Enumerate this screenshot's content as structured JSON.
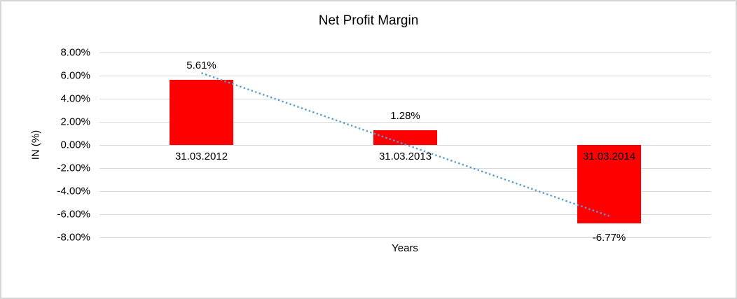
{
  "frame": {
    "background_color": "#ffffff",
    "border_color": "#d6d6d6"
  },
  "chart_data": {
    "type": "bar",
    "title": "Net Profit Margin",
    "xlabel": "Years",
    "ylabel": "IN (%)",
    "categories": [
      "31.03.2012",
      "31.03.2013",
      "31.03.2014"
    ],
    "values": [
      5.61,
      1.28,
      -6.77
    ],
    "data_labels": [
      "5.61%",
      "1.28%",
      "-6.77%"
    ],
    "y_ticks": [
      {
        "value": 8,
        "label": "8.00%"
      },
      {
        "value": 6,
        "label": "6.00%"
      },
      {
        "value": 4,
        "label": "4.00%"
      },
      {
        "value": 2,
        "label": "2.00%"
      },
      {
        "value": 0,
        "label": "0.00%"
      },
      {
        "value": -2,
        "label": "-2.00%"
      },
      {
        "value": -4,
        "label": "-4.00%"
      },
      {
        "value": -6,
        "label": "-6.00%"
      },
      {
        "value": -8,
        "label": "-8.00%"
      }
    ],
    "ylim": [
      -8,
      8
    ],
    "grid": true,
    "legend": "none",
    "bar_color": "#ff0000",
    "gridline_color": "#d9d9d9",
    "text_color": "#000000",
    "trendline": {
      "type": "linear",
      "style": "dotted",
      "color": "#5b9bd5"
    }
  }
}
